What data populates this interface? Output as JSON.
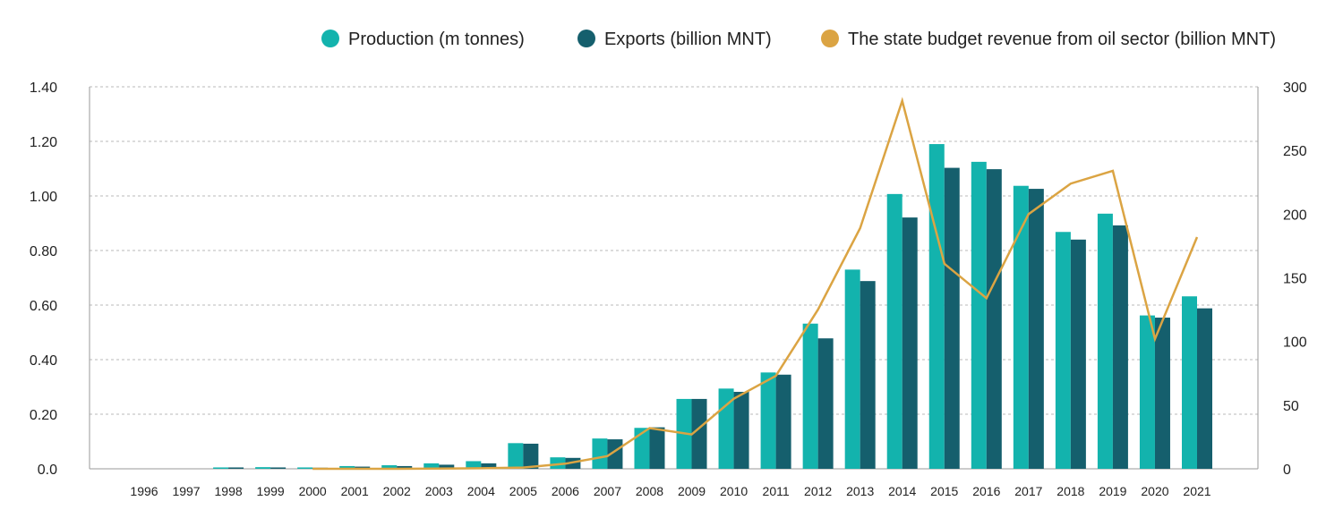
{
  "colors": {
    "production": "#13b3ad",
    "exports": "#155f6d",
    "revenue": "#dba443",
    "grid": "#b8b8b8",
    "axis": "#9a9a9a"
  },
  "chart_data": {
    "type": "bar",
    "categories": [
      "1996",
      "1997",
      "1998",
      "1999",
      "2000",
      "2001",
      "2002",
      "2003",
      "2004",
      "2005",
      "2006",
      "2007",
      "2008",
      "2009",
      "2010",
      "2011",
      "2012",
      "2013",
      "2014",
      "2015",
      "2016",
      "2017",
      "2018",
      "2019",
      "2020",
      "2021"
    ],
    "series": [
      {
        "name": "Production (m tonnes)",
        "type": "bar",
        "axis": "left",
        "values": [
          0,
          0,
          0.005,
          0.006,
          0.005,
          0.01,
          0.013,
          0.02,
          0.028,
          0.094,
          0.042,
          0.111,
          0.15,
          0.256,
          0.294,
          0.353,
          0.532,
          0.73,
          1.007,
          1.19,
          1.125,
          1.037,
          0.868,
          0.935,
          0.562,
          0.632
        ]
      },
      {
        "name": "Exports (billion MNT)",
        "type": "bar",
        "axis": "left",
        "values": [
          0,
          0,
          0.005,
          0.005,
          0.004,
          0.008,
          0.01,
          0.015,
          0.02,
          0.092,
          0.04,
          0.108,
          0.152,
          0.256,
          0.282,
          0.345,
          0.478,
          0.688,
          0.921,
          1.103,
          1.098,
          1.026,
          0.84,
          0.892,
          0.554,
          0.588
        ]
      },
      {
        "name": "The state budget revenue from oil sector (billion MNT)",
        "type": "line",
        "axis": "right",
        "values": [
          null,
          null,
          null,
          null,
          0,
          0,
          0,
          0.2,
          0.4,
          1,
          4,
          10,
          32,
          27,
          55,
          73,
          125,
          189,
          289,
          161,
          134,
          200,
          224,
          234,
          102,
          182
        ]
      }
    ],
    "y_left": {
      "ticks": [
        "0.0",
        "0.20",
        "0.40",
        "0.60",
        "0.80",
        "1.00",
        "1.20",
        "1.40"
      ],
      "range": [
        0,
        1.4
      ]
    },
    "y_right": {
      "ticks": [
        "0",
        "50",
        "100",
        "150",
        "200",
        "250",
        "300"
      ],
      "range": [
        0,
        300
      ]
    },
    "grid": true,
    "legend_position": "top-right"
  }
}
